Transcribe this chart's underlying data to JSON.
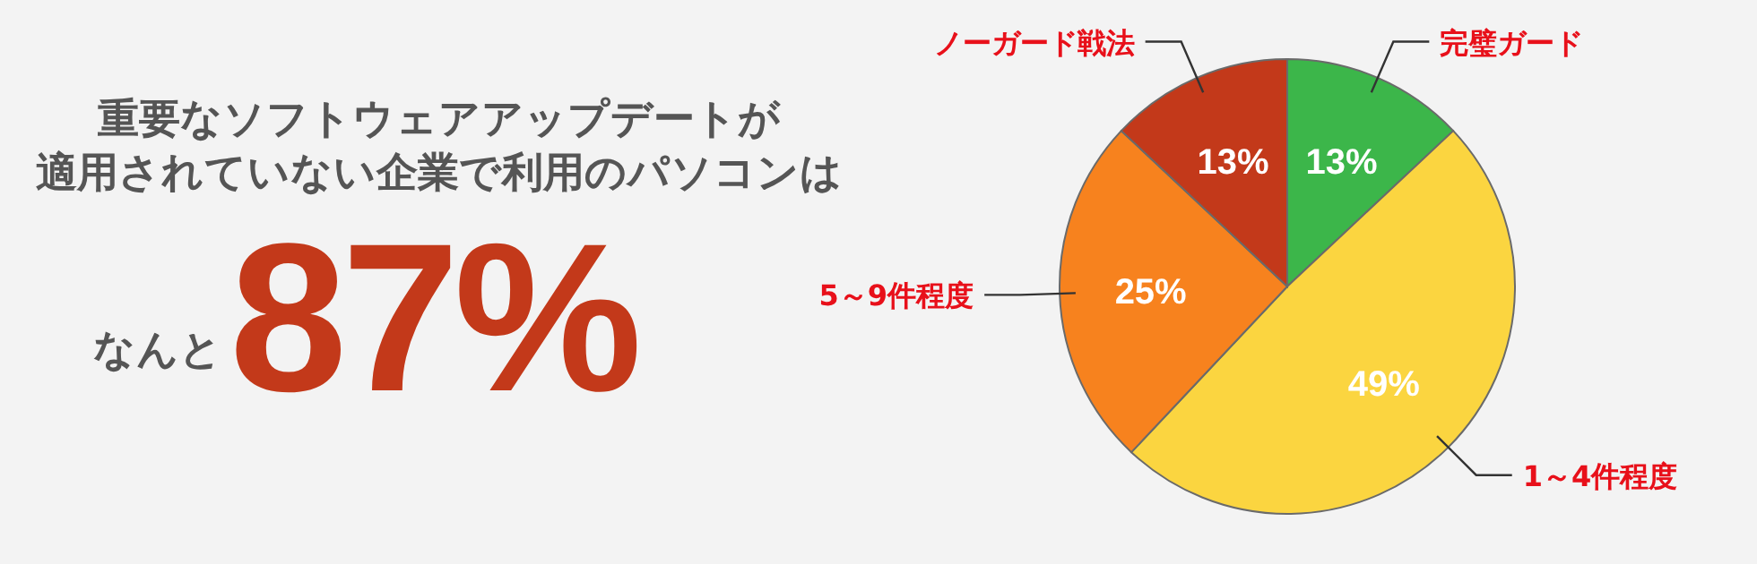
{
  "chart_data": {
    "type": "pie",
    "title": "重要なソフトウェアアップデートが",
    "subtitle": "適用されていない企業で利用のパソコンは",
    "annotations": [
      "なんと",
      "87%"
    ],
    "categories": [
      "完璧ガード",
      "1～4件程度",
      "5～9件程度",
      "ノーガード戦法"
    ],
    "values": [
      13,
      49,
      25,
      13
    ],
    "colors": [
      "#3cb64a",
      "#fbd540",
      "#f7821e",
      "#c3391a"
    ],
    "value_labels": [
      "13%",
      "49%",
      "25%",
      "13%"
    ]
  }
}
